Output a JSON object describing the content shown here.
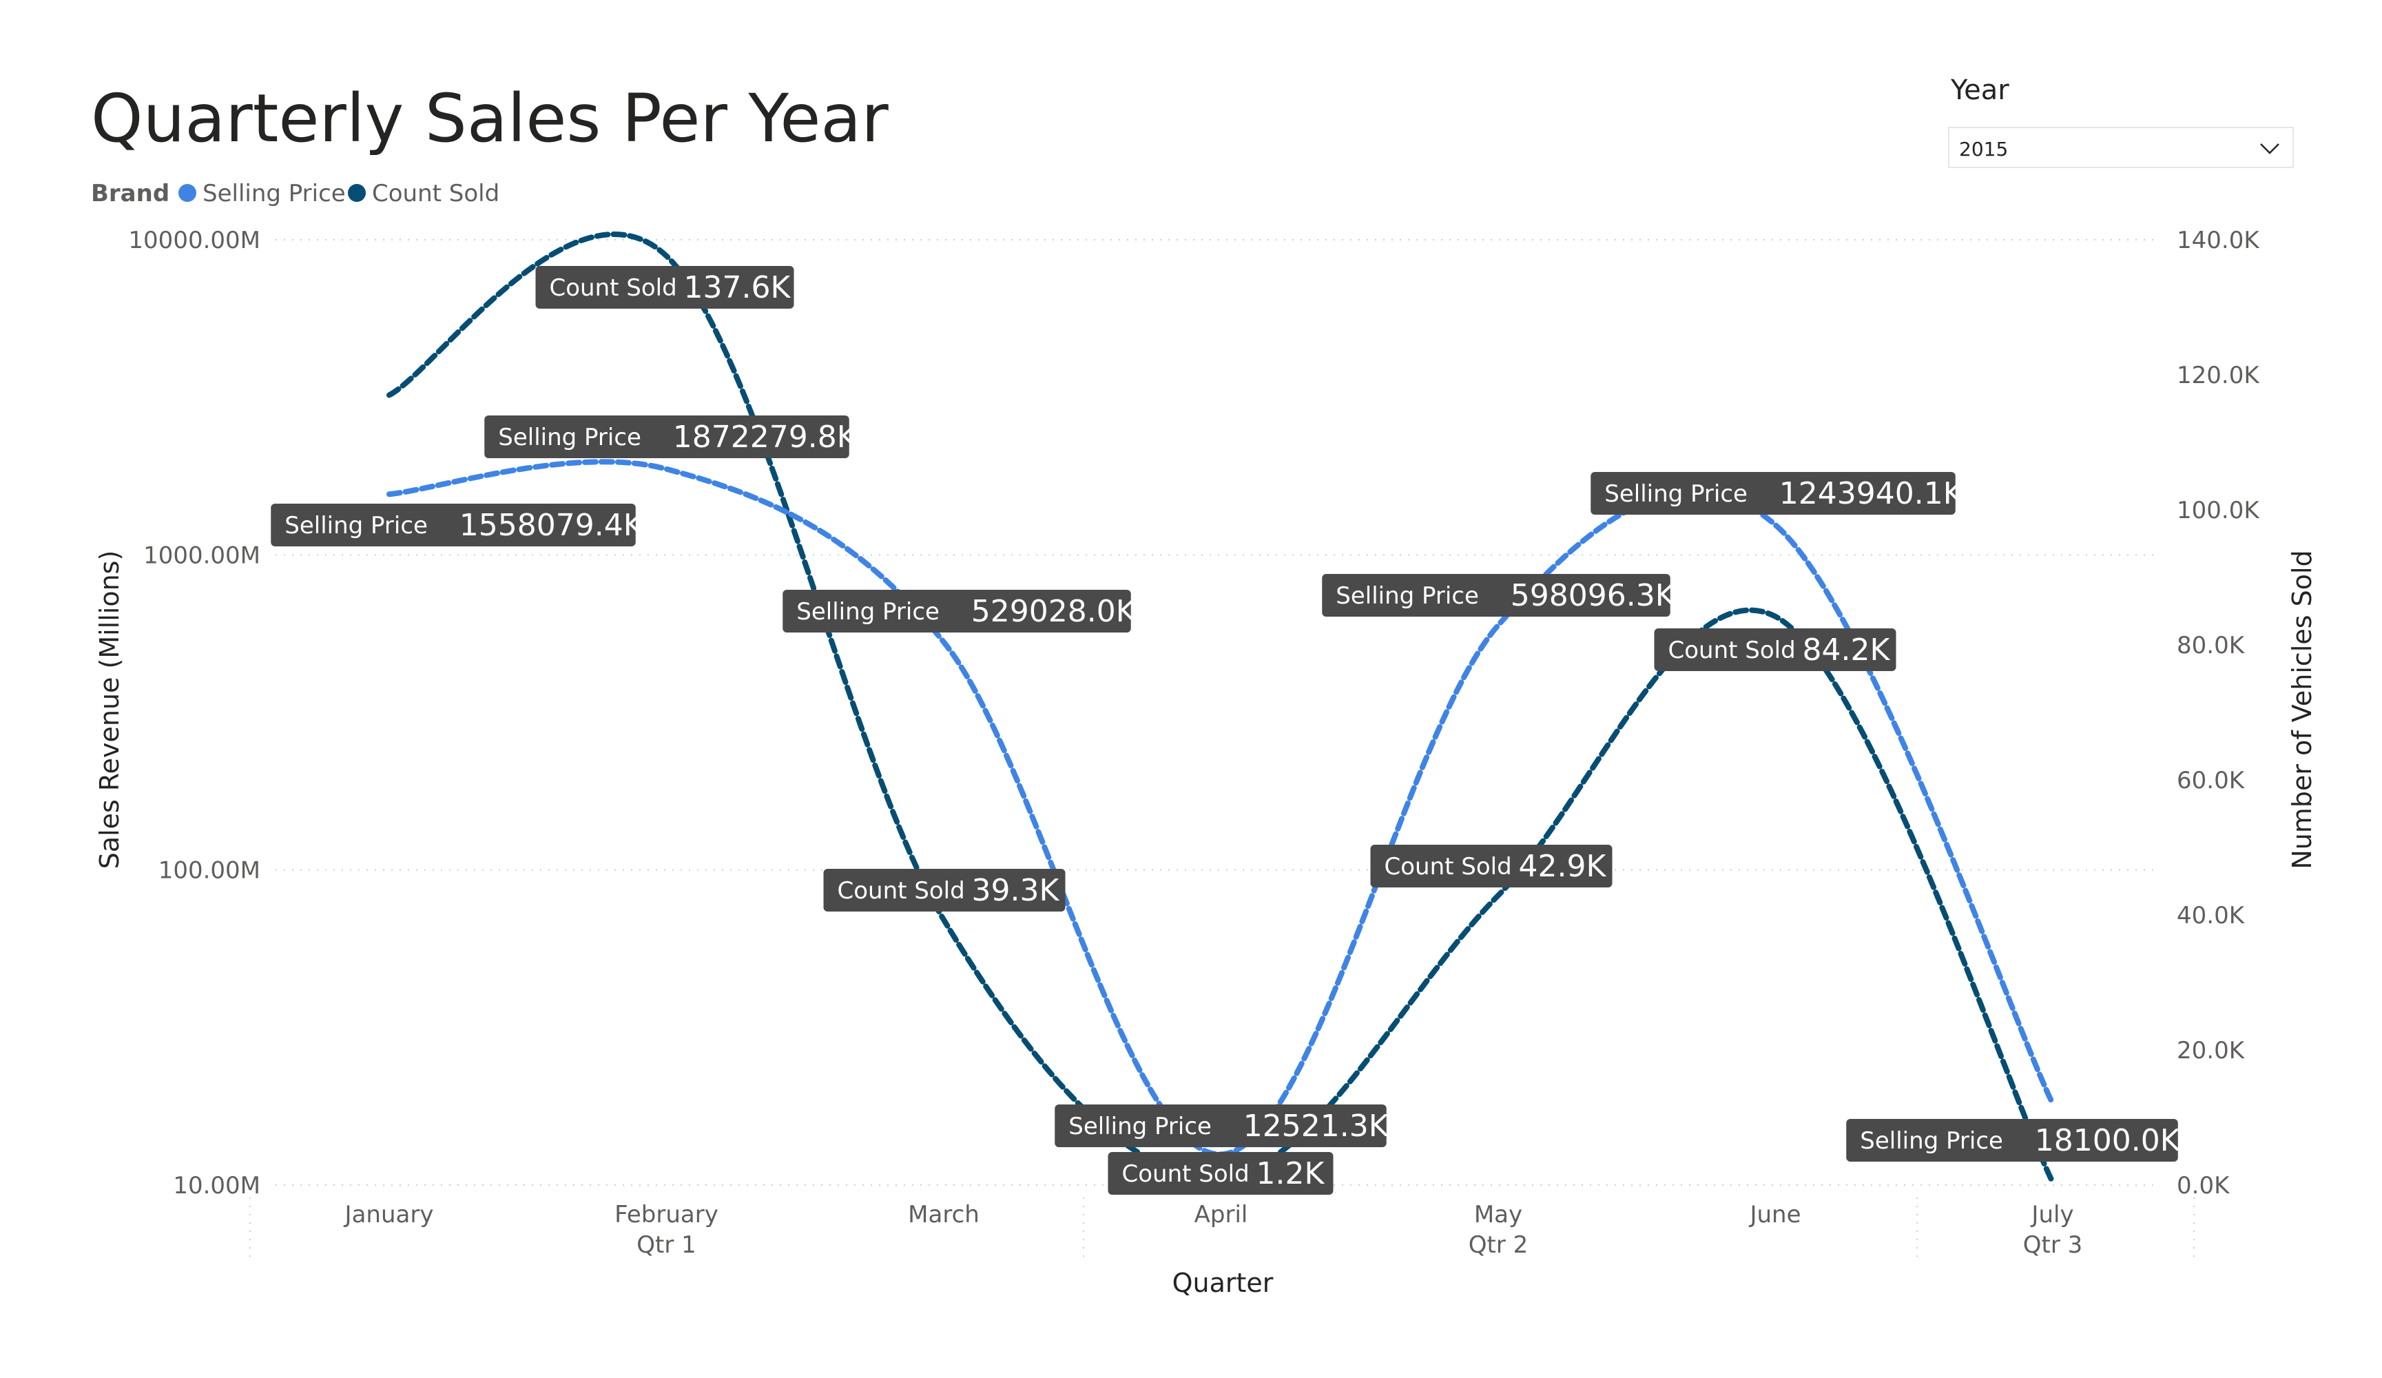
{
  "slicer": {
    "title": "Year",
    "value": "2015",
    "chevron_icon": "chevron-down-icon"
  },
  "colors": {
    "selling_price": "#3f84e5",
    "count_sold": "#064d73",
    "label_bg": "#4a4a4a",
    "label_text": "#ffffff",
    "grid": "#cfcfcf"
  },
  "chart_data": {
    "type": "line",
    "title": "Quarterly Sales Per Year",
    "legend": {
      "title": "Brand",
      "position": "top-left",
      "entries": [
        "Selling Price",
        "Count Sold"
      ]
    },
    "categories": [
      "January",
      "February",
      "March",
      "April",
      "May",
      "June",
      "July"
    ],
    "quarter_labels": [
      {
        "label": "Qtr 1",
        "under": "February"
      },
      {
        "label": "Qtr 2",
        "under": "May"
      },
      {
        "label": "Qtr 3",
        "under": "July"
      }
    ],
    "xlabel": "Quarter",
    "ylabel": "Sales Revenue (Millions)",
    "y2label": "Number of Vehicles Sold",
    "y_scale": "log",
    "ylim": [
      10,
      10000
    ],
    "yticks": [
      10,
      100,
      1000,
      10000
    ],
    "ytick_labels": [
      "10.00M",
      "100.00M",
      "1000.00M",
      "10000.00M"
    ],
    "y2lim": [
      0,
      140
    ],
    "y2ticks": [
      0,
      20,
      40,
      60,
      80,
      100,
      120,
      140
    ],
    "y2tick_labels": [
      "0.0K",
      "20.0K",
      "40.0K",
      "60.0K",
      "80.0K",
      "100.0K",
      "120.0K",
      "140.0K"
    ],
    "series": [
      {
        "name": "Selling Price",
        "axis": "left",
        "values": [
          1558.0794,
          1872.2798,
          529.028,
          12.5213,
          598.0963,
          1243.9401,
          18.1
        ],
        "labels": [
          "1558079.4K",
          "1872279.8K",
          "529028.0K",
          "12521.3K",
          "598096.3K",
          "1243940.1K",
          "18100.0K"
        ]
      },
      {
        "name": "Count Sold",
        "axis": "right",
        "values": [
          null,
          137.6,
          39.3,
          1.2,
          42.9,
          84.2,
          null
        ],
        "labels": [
          null,
          "137.6K",
          "39.3K",
          "1.2K",
          "42.9K",
          "84.2K",
          null
        ]
      }
    ],
    "grid": true
  }
}
